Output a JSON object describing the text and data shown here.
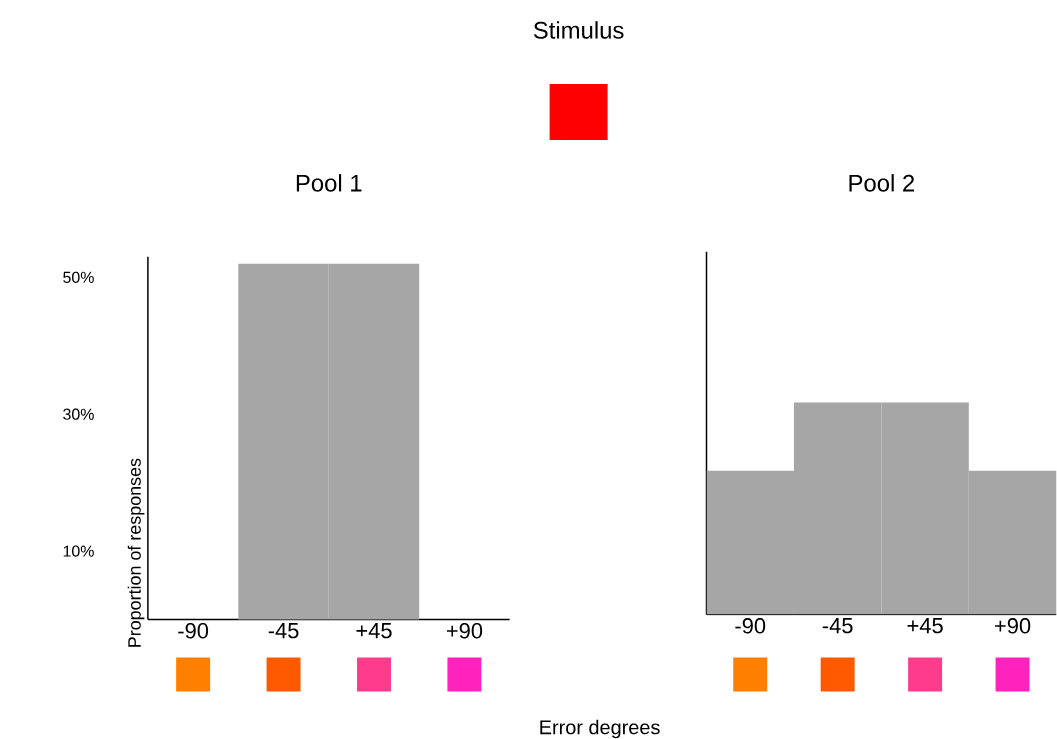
{
  "chart_data": [
    {
      "type": "bar",
      "title": "Pool 1",
      "categories": [
        "-90",
        "-45",
        "+45",
        "+90"
      ],
      "values": [
        0,
        52,
        52,
        0
      ],
      "color": "#a6a6a6",
      "ylabel": "Proportion of responses",
      "xlabel": "Error degrees",
      "ylim": [
        0,
        53
      ],
      "yticks": [
        {
          "value": 10,
          "label": "10%"
        },
        {
          "value": 30,
          "label": "30%"
        },
        {
          "value": 50,
          "label": "50%"
        }
      ],
      "annotations": [
        "Stimulus"
      ]
    },
    {
      "type": "bar",
      "title": "Pool 2",
      "categories": [
        "-90",
        "-45",
        "+45",
        "+90"
      ],
      "values": [
        21,
        31,
        31,
        21
      ],
      "color": "#a6a6a6",
      "ylim": [
        0,
        53
      ],
      "tick_labels": "x"
    }
  ]
}
